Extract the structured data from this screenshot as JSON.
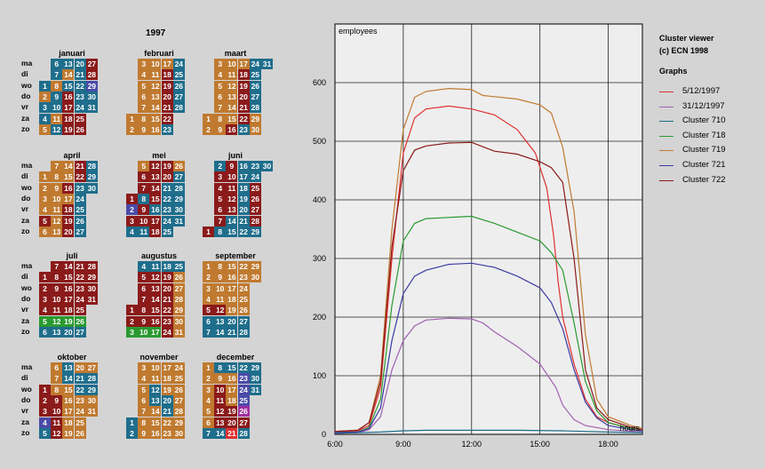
{
  "calendar": {
    "year": "1997",
    "day_names": [
      "ma",
      "di",
      "wo",
      "do",
      "vr",
      "za",
      "zo"
    ],
    "colors": {
      "o": "#c07a30",
      "r": "#8b1a1a",
      "t": "#1f6e8c",
      "b": "#4a4aa8",
      "g": "#2a9a30",
      "m": "#a030a0",
      "x": "#e03030"
    },
    "months": [
      {
        "name": "januari",
        "start": 2,
        "colors": "tottottottottotrrrrtttttrrrrb"
      },
      {
        "name": "februari",
        "start": 5,
        "colors": "ooooooooooooooooorrrrrttttttt"
      },
      {
        "name": "maart",
        "start": 5,
        "colors": "ooooooooooooooororrrrrttttttootr"
      },
      {
        "name": "april",
        "start": 1,
        "colors": "ooooroooooooooororrrrrtttttttttt"
      },
      {
        "name": "mei",
        "start": 3,
        "colors": "rbrtorrtrrtrrrrtrrrrtttttottttt"
      },
      {
        "name": "juni",
        "start": 6,
        "colors": "rtrrrrrtrrrrrtttttttttttrrrrtt"
      },
      {
        "name": "juli",
        "start": 1,
        "colors": "rrrrgtrrrrrgtrrrrrgtrrrrrgtrrrrr"
      },
      {
        "name": "augustus",
        "start": 4,
        "colors": "rrgtrrrrrgtrrrrrgtrrrrrrtoooooortt"
      },
      {
        "name": "september",
        "start": 0,
        "colors": "oooorttoooorttooooottooooottoo"
      },
      {
        "name": "oktober",
        "start": 2,
        "colors": "rrrbtooorrrrttoooooottooooottooooo"
      },
      {
        "name": "november",
        "start": 5,
        "colors": "ttooooooooottoooooottooooooooott"
      },
      {
        "name": "december",
        "start": 0,
        "colors": "oooooottorrrrttooorrxtbbbmrtt"
      }
    ]
  },
  "legend": {
    "title_line1": "Cluster viewer",
    "title_line2": "(c) ECN 1998",
    "graphs_heading": "Graphs",
    "items": [
      {
        "label": "5/12/1997",
        "color": "#e03030"
      },
      {
        "label": "31/12/1997",
        "color": "#a060b0"
      },
      {
        "label": "Cluster 710",
        "color": "#1f6e8c"
      },
      {
        "label": "Cluster 718",
        "color": "#2a9a30"
      },
      {
        "label": "Cluster 719",
        "color": "#c07a30"
      },
      {
        "label": "Cluster 721",
        "color": "#3a3aa0"
      },
      {
        "label": "Cluster 722",
        "color": "#8b1a1a"
      }
    ]
  },
  "chart_data": {
    "type": "line",
    "ylabel": "employees",
    "xlabel": "hours",
    "xlim": [
      6,
      19.5
    ],
    "ylim": [
      0,
      700
    ],
    "xticks": [
      {
        "v": 6,
        "label": "6:00"
      },
      {
        "v": 9,
        "label": "9:00"
      },
      {
        "v": 12,
        "label": "12:00"
      },
      {
        "v": 15,
        "label": "15:00"
      },
      {
        "v": 18,
        "label": "18:00"
      }
    ],
    "yticks": [
      {
        "v": 0,
        "label": "0"
      },
      {
        "v": 100,
        "label": "100"
      },
      {
        "v": 200,
        "label": "200"
      },
      {
        "v": 300,
        "label": "300"
      },
      {
        "v": 400,
        "label": "400"
      },
      {
        "v": 500,
        "label": "500"
      },
      {
        "v": 600,
        "label": "600"
      }
    ],
    "grid": true,
    "series": [
      {
        "name": "5/12/1997",
        "color": "#e03030",
        "points": [
          [
            6,
            5
          ],
          [
            7,
            6
          ],
          [
            7.5,
            15
          ],
          [
            8,
            80
          ],
          [
            8.5,
            300
          ],
          [
            9,
            480
          ],
          [
            9.5,
            540
          ],
          [
            10,
            555
          ],
          [
            11,
            560
          ],
          [
            12,
            555
          ],
          [
            13,
            545
          ],
          [
            14,
            520
          ],
          [
            14.8,
            480
          ],
          [
            15.3,
            420
          ],
          [
            15.6,
            340
          ],
          [
            15.8,
            260
          ],
          [
            16,
            200
          ],
          [
            16.5,
            120
          ],
          [
            17,
            60
          ],
          [
            17.5,
            30
          ],
          [
            18,
            20
          ],
          [
            19,
            10
          ],
          [
            19.5,
            8
          ]
        ]
      },
      {
        "name": "31/12/1997",
        "color": "#a060b0",
        "points": [
          [
            6,
            2
          ],
          [
            7,
            3
          ],
          [
            7.5,
            8
          ],
          [
            8,
            30
          ],
          [
            8.5,
            110
          ],
          [
            9,
            160
          ],
          [
            9.5,
            185
          ],
          [
            10,
            195
          ],
          [
            11,
            198
          ],
          [
            12,
            197
          ],
          [
            12.5,
            190
          ],
          [
            13,
            175
          ],
          [
            14,
            150
          ],
          [
            15,
            120
          ],
          [
            15.7,
            80
          ],
          [
            16,
            50
          ],
          [
            16.5,
            25
          ],
          [
            17,
            15
          ],
          [
            18,
            8
          ],
          [
            19.5,
            4
          ]
        ]
      },
      {
        "name": "Cluster 710",
        "color": "#1f6e8c",
        "points": [
          [
            6,
            2
          ],
          [
            8,
            4
          ],
          [
            9,
            6
          ],
          [
            10,
            7
          ],
          [
            12,
            7
          ],
          [
            14,
            7
          ],
          [
            16,
            6
          ],
          [
            17,
            5
          ],
          [
            18,
            4
          ],
          [
            19.5,
            3
          ]
        ]
      },
      {
        "name": "Cluster 718",
        "color": "#2a9a30",
        "points": [
          [
            6,
            3
          ],
          [
            7,
            4
          ],
          [
            7.5,
            12
          ],
          [
            8,
            60
          ],
          [
            8.5,
            220
          ],
          [
            9,
            330
          ],
          [
            9.5,
            360
          ],
          [
            10,
            368
          ],
          [
            11,
            370
          ],
          [
            12,
            372
          ],
          [
            13,
            360
          ],
          [
            14,
            345
          ],
          [
            15,
            330
          ],
          [
            15.5,
            310
          ],
          [
            16,
            280
          ],
          [
            16.5,
            190
          ],
          [
            17,
            90
          ],
          [
            17.5,
            40
          ],
          [
            18,
            20
          ],
          [
            19,
            10
          ],
          [
            19.5,
            8
          ]
        ]
      },
      {
        "name": "Cluster 719",
        "color": "#c07a30",
        "points": [
          [
            6,
            5
          ],
          [
            7,
            7
          ],
          [
            7.5,
            20
          ],
          [
            8,
            100
          ],
          [
            8.5,
            350
          ],
          [
            9,
            520
          ],
          [
            9.5,
            575
          ],
          [
            10,
            585
          ],
          [
            11,
            590
          ],
          [
            12,
            588
          ],
          [
            12.5,
            578
          ],
          [
            13,
            576
          ],
          [
            14,
            572
          ],
          [
            15,
            562
          ],
          [
            15.5,
            548
          ],
          [
            16,
            490
          ],
          [
            16.5,
            380
          ],
          [
            17,
            170
          ],
          [
            17.5,
            60
          ],
          [
            18,
            30
          ],
          [
            19,
            15
          ],
          [
            19.5,
            10
          ]
        ]
      },
      {
        "name": "Cluster 721",
        "color": "#3a3aa0",
        "points": [
          [
            6,
            3
          ],
          [
            7,
            4
          ],
          [
            7.5,
            10
          ],
          [
            8,
            45
          ],
          [
            8.5,
            160
          ],
          [
            9,
            240
          ],
          [
            9.5,
            270
          ],
          [
            10,
            280
          ],
          [
            11,
            290
          ],
          [
            12,
            292
          ],
          [
            13,
            285
          ],
          [
            14,
            270
          ],
          [
            15,
            250
          ],
          [
            15.5,
            225
          ],
          [
            16,
            180
          ],
          [
            16.5,
            110
          ],
          [
            17,
            55
          ],
          [
            17.5,
            28
          ],
          [
            18,
            15
          ],
          [
            19,
            8
          ],
          [
            19.5,
            6
          ]
        ]
      },
      {
        "name": "Cluster 722",
        "color": "#8b1a1a",
        "points": [
          [
            6,
            5
          ],
          [
            7,
            7
          ],
          [
            7.5,
            20
          ],
          [
            8,
            90
          ],
          [
            8.5,
            320
          ],
          [
            9,
            450
          ],
          [
            9.5,
            485
          ],
          [
            10,
            492
          ],
          [
            11,
            497
          ],
          [
            12,
            498
          ],
          [
            13,
            483
          ],
          [
            14,
            478
          ],
          [
            15,
            465
          ],
          [
            15.5,
            455
          ],
          [
            16,
            430
          ],
          [
            16.5,
            300
          ],
          [
            17,
            110
          ],
          [
            17.5,
            45
          ],
          [
            18,
            25
          ],
          [
            19,
            12
          ],
          [
            19.5,
            8
          ]
        ]
      }
    ]
  }
}
